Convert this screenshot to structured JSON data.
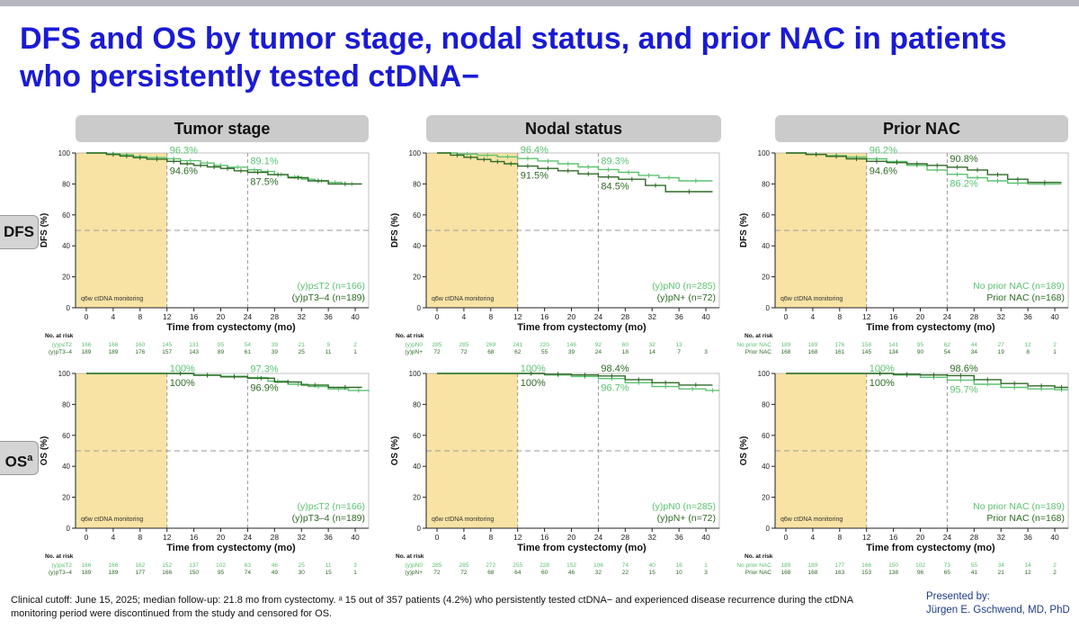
{
  "title": "DFS and OS by tumor stage, nodal status, and prior NAC in patients who persistently tested ctDNA−",
  "panel_headers": [
    "Tumor stage",
    "Nodal status",
    "Prior NAC"
  ],
  "row_labels": {
    "dfs": "DFS",
    "os": "OS",
    "os_sup": "a"
  },
  "footnote": "Clinical cutoff: June 15, 2025; median follow-up: 21.8 mo from cystectomy. ᵃ 15 out of 357 patients (4.2%) who persistently tested ctDNA− and experienced disease recurrence during the ctDNA monitoring period were discontinued from the study and censored for OS.",
  "presenter": {
    "label": "Presented by:",
    "name": "Jürgen E. Gschwend, MD, PhD"
  },
  "colors": {
    "light": "#5cc271",
    "dark": "#2f6a26",
    "band": "#f8e3a4",
    "title": "#1a1ad6"
  },
  "chart_data": [
    {
      "type": "line",
      "id": "dfs-tumor-stage",
      "panel": "Tumor stage",
      "endpoint": "DFS",
      "ylabel": "DFS (%)",
      "xlabel": "Time from cystectomy (mo)",
      "xlim": [
        0,
        42
      ],
      "ylim": [
        0,
        100
      ],
      "xticks": [
        0,
        4,
        8,
        12,
        16,
        20,
        24,
        28,
        32,
        36,
        40
      ],
      "yticks": [
        0,
        20,
        40,
        60,
        80,
        100
      ],
      "band_label": "q6w ctDNA monitoring",
      "band_range": [
        0,
        12
      ],
      "reference_y": 50,
      "vlines": [
        12,
        24
      ],
      "annotations": [
        {
          "text": "96.3%",
          "x": 12,
          "y": 96.3,
          "series": 0
        },
        {
          "text": "94.6%",
          "x": 12,
          "y": 94.6,
          "series": 1
        },
        {
          "text": "89.1%",
          "x": 24,
          "y": 89.1,
          "series": 0
        },
        {
          "text": "87.5%",
          "x": 24,
          "y": 87.5,
          "series": 1
        }
      ],
      "series": [
        {
          "name": "(y)p≤T2 (n=166)",
          "short": "(y)p≤T2",
          "color": "#5cc271",
          "x": [
            0,
            3,
            5,
            7,
            9,
            12,
            14,
            17,
            19,
            21,
            24,
            26,
            28,
            30,
            32,
            34,
            36,
            38,
            41
          ],
          "y": [
            100,
            99.4,
            98.8,
            97.6,
            97,
            96.3,
            95,
            93.5,
            92,
            90.8,
            89.1,
            88,
            86,
            84.5,
            83,
            82,
            81,
            80,
            80
          ],
          "risk": [
            "166",
            "166",
            "160",
            "145",
            "131",
            "95",
            "54",
            "39",
            "21",
            "9",
            "2"
          ]
        },
        {
          "name": "(y)pT3–4 (n=189)",
          "short": "(y)pT3–4",
          "color": "#2f6a26",
          "x": [
            0,
            3,
            5,
            7,
            9,
            12,
            14,
            16,
            18,
            20,
            22,
            24,
            27,
            30,
            33,
            36,
            41
          ],
          "y": [
            100,
            99,
            98,
            97,
            96,
            94.6,
            93,
            92,
            91,
            90,
            88.5,
            87.5,
            86,
            84,
            82,
            80,
            80
          ],
          "risk": [
            "189",
            "189",
            "176",
            "157",
            "143",
            "89",
            "61",
            "39",
            "25",
            "11",
            "1"
          ]
        }
      ]
    },
    {
      "type": "line",
      "id": "dfs-nodal-status",
      "panel": "Nodal status",
      "endpoint": "DFS",
      "ylabel": "DFS (%)",
      "xlabel": "Time from cystectomy (mo)",
      "xlim": [
        0,
        42
      ],
      "ylim": [
        0,
        100
      ],
      "xticks": [
        0,
        4,
        8,
        12,
        16,
        20,
        24,
        28,
        32,
        36,
        40
      ],
      "yticks": [
        0,
        20,
        40,
        60,
        80,
        100
      ],
      "band_label": "q6w ctDNA monitoring",
      "band_range": [
        0,
        12
      ],
      "reference_y": 50,
      "vlines": [
        12,
        24
      ],
      "annotations": [
        {
          "text": "96.4%",
          "x": 12,
          "y": 96.4,
          "series": 0
        },
        {
          "text": "91.5%",
          "x": 12,
          "y": 91.5,
          "series": 1
        },
        {
          "text": "89.3%",
          "x": 24,
          "y": 89.3,
          "series": 0
        },
        {
          "text": "84.5%",
          "x": 24,
          "y": 84.5,
          "series": 1
        }
      ],
      "series": [
        {
          "name": "(y)pN0 (n=285)",
          "short": "(y)pN0",
          "color": "#5cc271",
          "x": [
            0,
            3,
            6,
            9,
            12,
            15,
            18,
            21,
            24,
            27,
            30,
            33,
            36,
            41
          ],
          "y": [
            100,
            99.3,
            98.5,
            97.5,
            96.4,
            94.8,
            93,
            91,
            89.3,
            87.5,
            85.5,
            84,
            82,
            82
          ],
          "risk": [
            "285",
            "285",
            "269",
            "241",
            "220",
            "146",
            "92",
            "60",
            "32",
            "13",
            ""
          ]
        },
        {
          "name": "(y)pN+ (n=72)",
          "short": "(y)pN+",
          "color": "#2f6a26",
          "x": [
            0,
            2,
            4,
            6,
            8,
            10,
            12,
            15,
            18,
            21,
            24,
            27,
            31,
            34,
            41
          ],
          "y": [
            100,
            98.6,
            97.2,
            95.8,
            94.4,
            93,
            91.5,
            90,
            88.5,
            86.5,
            84.5,
            83,
            79,
            75,
            75
          ],
          "risk": [
            "72",
            "72",
            "68",
            "62",
            "55",
            "39",
            "24",
            "18",
            "14",
            "7",
            "3"
          ]
        }
      ]
    },
    {
      "type": "line",
      "id": "dfs-prior-nac",
      "panel": "Prior NAC",
      "endpoint": "DFS",
      "ylabel": "DFS (%)",
      "xlabel": "Time from cystectomy (mo)",
      "xlim": [
        0,
        42
      ],
      "ylim": [
        0,
        100
      ],
      "xticks": [
        0,
        4,
        8,
        12,
        16,
        20,
        24,
        28,
        32,
        36,
        40
      ],
      "yticks": [
        0,
        20,
        40,
        60,
        80,
        100
      ],
      "band_label": "q6w ctDNA monitoring",
      "band_range": [
        0,
        12
      ],
      "reference_y": 50,
      "vlines": [
        12,
        24
      ],
      "annotations": [
        {
          "text": "96.2%",
          "x": 12,
          "y": 96.2,
          "series": 0
        },
        {
          "text": "94.6%",
          "x": 12,
          "y": 94.6,
          "series": 1
        },
        {
          "text": "90.8%",
          "x": 24,
          "y": 90.8,
          "series": 1
        },
        {
          "text": "86.2%",
          "x": 24,
          "y": 86.2,
          "series": 0
        }
      ],
      "series": [
        {
          "name": "No prior NAC (n=189)",
          "short": "No prior NAC",
          "color": "#5cc271",
          "x": [
            0,
            3,
            6,
            9,
            12,
            15,
            18,
            21,
            24,
            27,
            30,
            33,
            36,
            41
          ],
          "y": [
            100,
            99.2,
            98.3,
            97.3,
            96.2,
            94.5,
            92,
            89,
            86.2,
            84,
            82,
            80.5,
            80,
            80
          ],
          "risk": [
            "189",
            "189",
            "176",
            "158",
            "141",
            "95",
            "62",
            "44",
            "27",
            "12",
            "2"
          ]
        },
        {
          "name": "Prior NAC (n=168)",
          "short": "Prior NAC",
          "color": "#2f6a26",
          "x": [
            0,
            3,
            6,
            9,
            12,
            15,
            18,
            21,
            24,
            27,
            30,
            33,
            36,
            41
          ],
          "y": [
            100,
            99,
            97.8,
            96.2,
            94.6,
            93.8,
            93,
            92,
            90.8,
            89,
            86,
            83,
            81,
            81
          ],
          "risk": [
            "168",
            "168",
            "161",
            "145",
            "134",
            "90",
            "54",
            "34",
            "19",
            "8",
            "1"
          ]
        }
      ]
    },
    {
      "type": "line",
      "id": "os-tumor-stage",
      "panel": "Tumor stage",
      "endpoint": "OS",
      "ylabel": "OS (%)",
      "xlabel": "Time from cystectomy (mo)",
      "xlim": [
        0,
        42
      ],
      "ylim": [
        0,
        100
      ],
      "xticks": [
        0,
        4,
        8,
        12,
        16,
        20,
        24,
        28,
        32,
        36,
        40
      ],
      "yticks": [
        0,
        20,
        40,
        60,
        80,
        100
      ],
      "band_label": "q6w ctDNA monitoring",
      "band_range": [
        0,
        12
      ],
      "reference_y": 50,
      "vlines": [
        12,
        24
      ],
      "annotations": [
        {
          "text": "100%",
          "x": 12,
          "y": 100,
          "series": 0
        },
        {
          "text": "100%",
          "x": 12,
          "y": 100,
          "series": 1
        },
        {
          "text": "97.3%",
          "x": 24,
          "y": 97.3,
          "series": 0
        },
        {
          "text": "96.9%",
          "x": 24,
          "y": 96.9,
          "series": 1
        }
      ],
      "series": [
        {
          "name": "(y)p≤T2 (n=166)",
          "short": "(y)p≤T2",
          "color": "#5cc271",
          "x": [
            0,
            12,
            16,
            20,
            24,
            27,
            30,
            33,
            36,
            39,
            42
          ],
          "y": [
            100,
            100,
            99,
            98.2,
            97.3,
            95,
            93,
            91.5,
            90,
            89,
            88.5
          ],
          "risk": [
            "166",
            "166",
            "162",
            "152",
            "137",
            "102",
            "63",
            "46",
            "25",
            "11",
            "3"
          ]
        },
        {
          "name": "(y)pT3–4 (n=189)",
          "short": "(y)pT3–4",
          "color": "#2f6a26",
          "x": [
            0,
            12,
            16,
            20,
            24,
            28,
            32,
            36,
            41
          ],
          "y": [
            100,
            100,
            98.8,
            97.8,
            96.9,
            94.5,
            92.5,
            91,
            91
          ],
          "risk": [
            "189",
            "189",
            "177",
            "166",
            "150",
            "95",
            "74",
            "49",
            "30",
            "15",
            "1"
          ]
        }
      ]
    },
    {
      "type": "line",
      "id": "os-nodal-status",
      "panel": "Nodal status",
      "endpoint": "OS",
      "ylabel": "OS (%)",
      "xlabel": "Time from cystectomy (mo)",
      "xlim": [
        0,
        42
      ],
      "ylim": [
        0,
        100
      ],
      "xticks": [
        0,
        4,
        8,
        12,
        16,
        20,
        24,
        28,
        32,
        36,
        40
      ],
      "yticks": [
        0,
        20,
        40,
        60,
        80,
        100
      ],
      "band_label": "q6w ctDNA monitoring",
      "band_range": [
        0,
        12
      ],
      "reference_y": 50,
      "vlines": [
        12,
        24
      ],
      "annotations": [
        {
          "text": "100%",
          "x": 12,
          "y": 100,
          "series": 0
        },
        {
          "text": "100%",
          "x": 12,
          "y": 100,
          "series": 1
        },
        {
          "text": "98.4%",
          "x": 24,
          "y": 98.4,
          "series": 1
        },
        {
          "text": "96.7%",
          "x": 24,
          "y": 96.7,
          "series": 0
        }
      ],
      "series": [
        {
          "name": "(y)pN0 (n=285)",
          "short": "(y)pN0",
          "color": "#5cc271",
          "x": [
            0,
            12,
            16,
            20,
            24,
            28,
            32,
            36,
            40,
            42
          ],
          "y": [
            100,
            100,
            99,
            98,
            96.7,
            94,
            91.5,
            90,
            89,
            89
          ],
          "risk": [
            "285",
            "285",
            "272",
            "255",
            "228",
            "152",
            "106",
            "74",
            "40",
            "16",
            "1"
          ]
        },
        {
          "name": "(y)pN+ (n=72)",
          "short": "(y)pN+",
          "color": "#2f6a26",
          "x": [
            0,
            12,
            16,
            20,
            24,
            28,
            32,
            36,
            41
          ],
          "y": [
            100,
            100,
            99.5,
            99,
            98.4,
            96,
            94,
            92.5,
            92.5
          ],
          "risk": [
            "72",
            "72",
            "68",
            "64",
            "60",
            "46",
            "32",
            "22",
            "15",
            "10",
            "3"
          ]
        }
      ]
    },
    {
      "type": "line",
      "id": "os-prior-nac",
      "panel": "Prior NAC",
      "endpoint": "OS",
      "ylabel": "OS (%)",
      "xlabel": "Time from cystectomy (mo)",
      "xlim": [
        0,
        42
      ],
      "ylim": [
        0,
        100
      ],
      "xticks": [
        0,
        4,
        8,
        12,
        16,
        20,
        24,
        28,
        32,
        36,
        40
      ],
      "yticks": [
        0,
        20,
        40,
        60,
        80,
        100
      ],
      "band_label": "q6w ctDNA monitoring",
      "band_range": [
        0,
        12
      ],
      "reference_y": 50,
      "vlines": [
        12,
        24
      ],
      "annotations": [
        {
          "text": "100%",
          "x": 12,
          "y": 100,
          "series": 0
        },
        {
          "text": "100%",
          "x": 12,
          "y": 100,
          "series": 1
        },
        {
          "text": "98.6%",
          "x": 24,
          "y": 98.6,
          "series": 1
        },
        {
          "text": "95.7%",
          "x": 24,
          "y": 95.7,
          "series": 0
        }
      ],
      "series": [
        {
          "name": "No prior NAC (n=189)",
          "short": "No prior NAC",
          "color": "#5cc271",
          "x": [
            0,
            12,
            16,
            20,
            24,
            28,
            32,
            36,
            40,
            42
          ],
          "y": [
            100,
            100,
            99,
            97.5,
            95.7,
            93,
            91,
            90,
            89.5,
            89.5
          ],
          "risk": [
            "189",
            "189",
            "177",
            "166",
            "150",
            "102",
            "73",
            "55",
            "34",
            "14",
            "2"
          ]
        },
        {
          "name": "Prior NAC (n=168)",
          "short": "Prior NAC",
          "color": "#2f6a26",
          "x": [
            0,
            12,
            16,
            20,
            24,
            28,
            32,
            36,
            40,
            42
          ],
          "y": [
            100,
            100,
            99.4,
            99,
            98.6,
            96,
            93.5,
            92,
            91,
            91
          ],
          "risk": [
            "168",
            "168",
            "163",
            "153",
            "138",
            "96",
            "65",
            "41",
            "21",
            "12",
            "2"
          ]
        }
      ]
    }
  ]
}
